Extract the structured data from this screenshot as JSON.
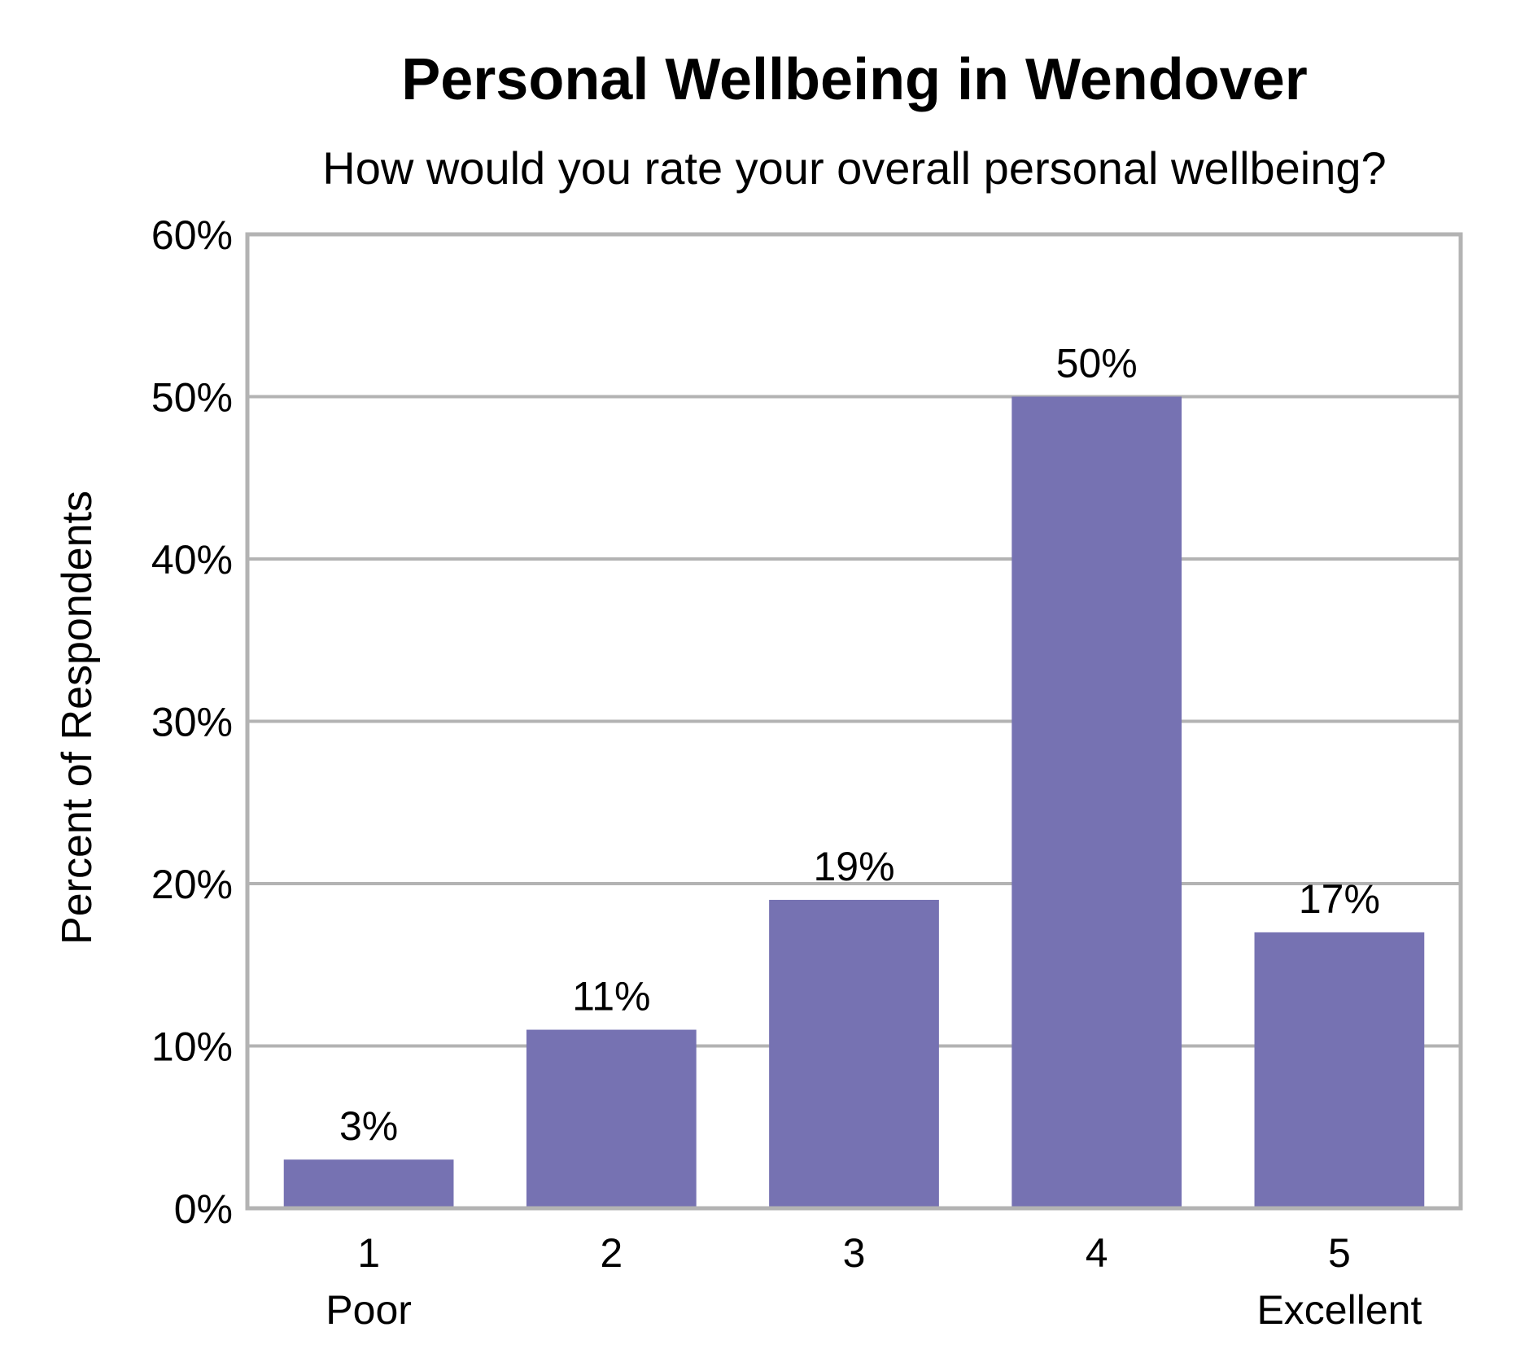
{
  "chart_data": {
    "type": "bar",
    "title": "Personal Wellbeing in Wendover",
    "subtitle": "How would you rate your overall personal wellbeing?",
    "ylabel": "Percent of Respondents",
    "xlabel": "",
    "categories": [
      "1",
      "2",
      "3",
      "4",
      "5"
    ],
    "category_sublabels": [
      "Poor",
      "",
      "",
      "",
      "Excellent"
    ],
    "values": [
      3,
      11,
      19,
      50,
      17
    ],
    "data_labels": [
      "3%",
      "11%",
      "19%",
      "50%",
      "17%"
    ],
    "ylim": [
      0,
      60
    ],
    "yticks": [
      0,
      10,
      20,
      30,
      40,
      50,
      60
    ],
    "ytick_labels": [
      "0%",
      "10%",
      "20%",
      "30%",
      "40%",
      "50%",
      "60%"
    ],
    "grid": true,
    "legend": "none",
    "colors": {
      "bar": "#7672b2",
      "grid": "#b3b3b3",
      "frame": "#b3b3b3"
    }
  }
}
